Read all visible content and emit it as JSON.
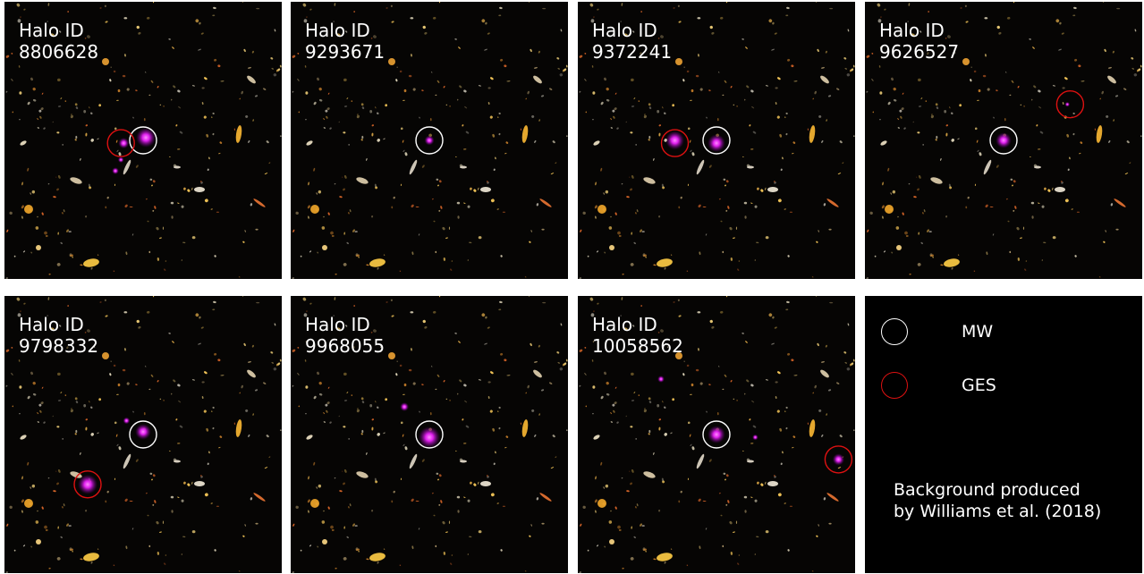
{
  "panels": [
    {
      "label": "Halo ID\n8806628",
      "mw": true,
      "ges": [
        [
          0.42,
          0.51
        ]
      ],
      "blobs": [
        [
          0.51,
          0.49,
          1.0
        ],
        [
          0.43,
          0.51,
          0.55
        ],
        [
          0.4,
          0.61,
          0.35
        ],
        [
          0.42,
          0.57,
          0.3
        ]
      ]
    },
    {
      "label": "Halo ID\n9293671",
      "mw": true,
      "ges": [],
      "blobs": [
        [
          0.5,
          0.5,
          0.5
        ]
      ]
    },
    {
      "label": "Halo ID\n9372241",
      "mw": true,
      "ges": [
        [
          0.35,
          0.51
        ]
      ],
      "blobs": [
        [
          0.5,
          0.51,
          0.9
        ],
        [
          0.35,
          0.5,
          0.95
        ]
      ]
    },
    {
      "label": "Halo ID\n9626527",
      "mw": true,
      "ges": [
        [
          0.74,
          0.37
        ]
      ],
      "blobs": [
        [
          0.5,
          0.5,
          0.8
        ],
        [
          0.73,
          0.37,
          0.25
        ]
      ]
    },
    {
      "label": "Halo ID\n9798332",
      "mw": true,
      "ges": [
        [
          0.3,
          0.68
        ]
      ],
      "blobs": [
        [
          0.5,
          0.49,
          0.8
        ],
        [
          0.3,
          0.68,
          1.0
        ],
        [
          0.44,
          0.45,
          0.35
        ]
      ]
    },
    {
      "label": "Halo ID\n9968055",
      "mw": true,
      "ges": [],
      "blobs": [
        [
          0.5,
          0.51,
          1.1
        ],
        [
          0.41,
          0.4,
          0.45
        ]
      ]
    },
    {
      "label": "Halo ID\n10058562",
      "mw": true,
      "ges": [
        [
          0.94,
          0.59
        ]
      ],
      "blobs": [
        [
          0.5,
          0.5,
          0.9
        ],
        [
          0.94,
          0.59,
          0.6
        ],
        [
          0.3,
          0.3,
          0.35
        ],
        [
          0.64,
          0.51,
          0.3
        ]
      ]
    }
  ],
  "legend": {
    "mw_label": "MW",
    "ges_label": "GES",
    "credit": "Background produced\nby Williams et al. (2018)"
  },
  "colors": {
    "mw_ring": "#ffffff",
    "ges_ring": "#dd1111",
    "halo": "#e020ee"
  }
}
